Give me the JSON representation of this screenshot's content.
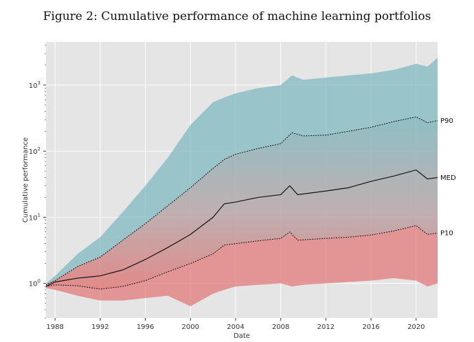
{
  "figure": {
    "title": "Figure 2: Cumulative performance of machine learning portfolios"
  },
  "colors": {
    "background": "#e5e5e5",
    "grid": "#ffffff",
    "high_band": "#7fb8bf",
    "low_band": "#e07a78",
    "median_line": "#111111"
  },
  "chart_data": {
    "type": "line",
    "scale": {
      "y": "log10"
    },
    "xlabel": "Date",
    "ylabel": "Cumulative performance",
    "xlim": [
      1987.2,
      2021.9
    ],
    "ylim": [
      0.3,
      4500
    ],
    "grid": true,
    "x_ticks": [
      {
        "value": 1988,
        "label": "1988"
      },
      {
        "value": 1992,
        "label": "1992"
      },
      {
        "value": 1996,
        "label": "1996"
      },
      {
        "value": 2000,
        "label": "2000"
      },
      {
        "value": 2004,
        "label": "2004"
      },
      {
        "value": 2008,
        "label": "2008"
      },
      {
        "value": 2012,
        "label": "2012"
      },
      {
        "value": 2016,
        "label": "2016"
      },
      {
        "value": 2020,
        "label": "2020"
      }
    ],
    "y_ticks": [
      {
        "value": 1,
        "base": "10",
        "exp": "0"
      },
      {
        "value": 10,
        "base": "10",
        "exp": "1"
      },
      {
        "value": 100,
        "base": "10",
        "exp": "2"
      },
      {
        "value": 1000,
        "base": "10",
        "exp": "3"
      }
    ],
    "series": [
      {
        "name": "P90",
        "style": "dotted",
        "x": [
          1987.2,
          1988,
          1990,
          1992,
          1994,
          1996,
          1998,
          2000,
          2002,
          2003,
          2004,
          2006,
          2008,
          2009,
          2010,
          2012,
          2014,
          2016,
          2018,
          2020,
          2021,
          2021.9
        ],
        "y": [
          0.95,
          1.1,
          1.8,
          2.5,
          4.5,
          8,
          15,
          28,
          55,
          75,
          90,
          110,
          130,
          190,
          170,
          175,
          200,
          230,
          280,
          330,
          270,
          290
        ]
      },
      {
        "name": "MED",
        "style": "solid",
        "x": [
          1987.2,
          1988,
          1990,
          1992,
          1994,
          1996,
          1998,
          2000,
          2002,
          2003,
          2004,
          2006,
          2008,
          2008.8,
          2009.5,
          2012,
          2014,
          2016,
          2018,
          2020,
          2021,
          2021.9
        ],
        "y": [
          0.9,
          1.05,
          1.2,
          1.3,
          1.6,
          2.3,
          3.5,
          5.5,
          10,
          16,
          17,
          20,
          22,
          30,
          22,
          25,
          28,
          35,
          42,
          52,
          38,
          40
        ]
      },
      {
        "name": "P10",
        "style": "dotted",
        "x": [
          1987.2,
          1988,
          1990,
          1992,
          1994,
          1996,
          1998,
          2000,
          2002,
          2003,
          2004,
          2006,
          2008,
          2008.8,
          2009.5,
          2012,
          2014,
          2016,
          2018,
          2020,
          2021,
          2021.9
        ],
        "y": [
          0.9,
          0.95,
          0.92,
          0.82,
          0.9,
          1.1,
          1.5,
          2.0,
          2.8,
          3.8,
          4.0,
          4.4,
          4.8,
          6.0,
          4.5,
          4.8,
          5.0,
          5.4,
          6.2,
          7.5,
          5.5,
          5.8
        ]
      }
    ],
    "bands": [
      {
        "role": "upper_tail",
        "x": [
          1987.2,
          1988,
          1990,
          1992,
          1994,
          1996,
          1998,
          2000,
          2002,
          2003,
          2004,
          2006,
          2008,
          2009,
          2010,
          2012,
          2014,
          2016,
          2018,
          2020,
          2021,
          2021.9
        ],
        "y_low": [
          0.95,
          1.1,
          1.8,
          2.5,
          4.5,
          8,
          15,
          28,
          55,
          75,
          90,
          110,
          130,
          190,
          170,
          175,
          200,
          230,
          280,
          330,
          270,
          290
        ],
        "y_high": [
          1.0,
          1.3,
          2.8,
          5,
          12,
          30,
          80,
          250,
          550,
          650,
          750,
          900,
          1000,
          1400,
          1200,
          1300,
          1400,
          1500,
          1700,
          2100,
          1900,
          2600
        ]
      },
      {
        "role": "center",
        "x": [
          1987.2,
          1988,
          1990,
          1992,
          1994,
          1996,
          1998,
          2000,
          2002,
          2003,
          2004,
          2006,
          2008,
          2009,
          2010,
          2012,
          2014,
          2016,
          2018,
          2020,
          2021,
          2021.9
        ],
        "y_low": [
          0.9,
          0.95,
          0.92,
          0.82,
          0.9,
          1.1,
          1.5,
          2.0,
          2.8,
          3.8,
          4.0,
          4.4,
          4.8,
          5.5,
          4.5,
          4.8,
          5.0,
          5.4,
          6.2,
          7.5,
          5.5,
          5.8
        ],
        "y_high": [
          0.95,
          1.1,
          1.8,
          2.5,
          4.5,
          8,
          15,
          28,
          55,
          75,
          90,
          110,
          130,
          190,
          170,
          175,
          200,
          230,
          280,
          330,
          270,
          290
        ]
      },
      {
        "role": "lower_tail",
        "x": [
          1987.2,
          1988,
          1990,
          1992,
          1994,
          1996,
          1998,
          2000,
          2002,
          2003,
          2004,
          2006,
          2008,
          2009,
          2010,
          2012,
          2014,
          2016,
          2018,
          2020,
          2021,
          2021.9
        ],
        "y_low": [
          0.85,
          0.8,
          0.65,
          0.55,
          0.55,
          0.6,
          0.65,
          0.45,
          0.7,
          0.8,
          0.9,
          0.95,
          1.0,
          0.9,
          0.95,
          1.0,
          1.05,
          1.1,
          1.2,
          1.1,
          0.9,
          1.0
        ],
        "y_high": [
          0.9,
          0.95,
          0.92,
          0.82,
          0.9,
          1.1,
          1.5,
          2.0,
          2.8,
          3.8,
          4.0,
          4.4,
          4.8,
          5.5,
          4.5,
          4.8,
          5.0,
          5.4,
          6.2,
          7.5,
          5.5,
          5.8
        ]
      }
    ]
  }
}
